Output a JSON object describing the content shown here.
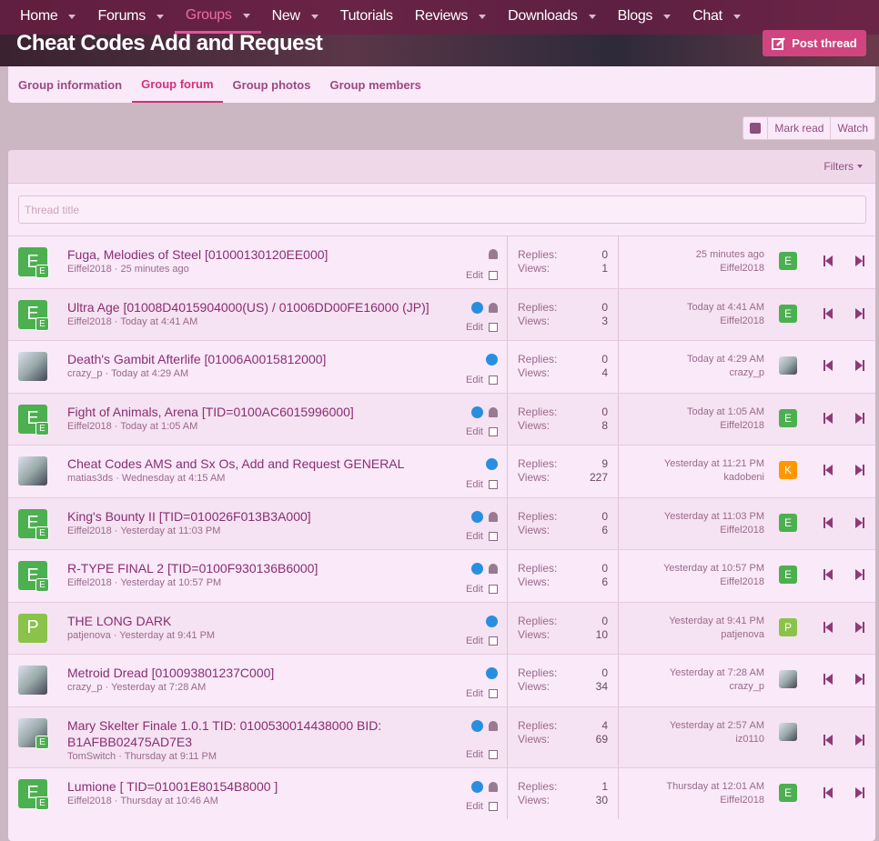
{
  "nav": [
    {
      "label": "Home",
      "menu": true
    },
    {
      "label": "Forums",
      "menu": true
    },
    {
      "label": "Groups",
      "menu": true,
      "active": true
    },
    {
      "label": "New",
      "menu": true
    },
    {
      "label": "Tutorials",
      "menu": false
    },
    {
      "label": "Reviews",
      "menu": true
    },
    {
      "label": "Downloads",
      "menu": true
    },
    {
      "label": "Blogs",
      "menu": true
    },
    {
      "label": "Chat",
      "menu": true
    }
  ],
  "header": {
    "title": "Cheat Codes Add and Request",
    "post_button": "Post thread"
  },
  "tabs": [
    {
      "label": "Group information"
    },
    {
      "label": "Group forum",
      "active": true
    },
    {
      "label": "Group photos"
    },
    {
      "label": "Group members"
    }
  ],
  "actions": {
    "mark_read": "Mark read",
    "watch": "Watch"
  },
  "filters": "Filters",
  "search_placeholder": "Thread title",
  "labels": {
    "replies": "Replies:",
    "views": "Views:",
    "edit": "Edit"
  },
  "threads": [
    {
      "title": "Fuga, Melodies of Steel [01000130120EE000]",
      "author": "Eiffel2018",
      "date": "25 minutes ago",
      "replies": 0,
      "views": 1,
      "last_date": "25 minutes ago",
      "last_user": "Eiffel2018",
      "avatar": "E",
      "badge": "E",
      "last_avatar": "E",
      "liked": false,
      "bell": true
    },
    {
      "title": "Ultra Age [01008D4015904000(US) / 01006DD00FE16000 (JP)]",
      "author": "Eiffel2018",
      "date": "Today at 4:41 AM",
      "replies": 0,
      "views": 3,
      "last_date": "Today at 4:41 AM",
      "last_user": "Eiffel2018",
      "avatar": "E",
      "badge": "E",
      "last_avatar": "E",
      "liked": true,
      "bell": true
    },
    {
      "title": "Death's Gambit Afterlife [01006A0015812000]",
      "author": "crazy_p",
      "date": "Today at 4:29 AM",
      "replies": 0,
      "views": 4,
      "last_date": "Today at 4:29 AM",
      "last_user": "crazy_p",
      "liked": true,
      "bell": false
    },
    {
      "title": "Fight of Animals, Arena [TID=0100AC6015996000]",
      "author": "Eiffel2018",
      "date": "Today at 1:05 AM",
      "replies": 0,
      "views": 8,
      "last_date": "Today at 1:05 AM",
      "last_user": "Eiffel2018",
      "avatar": "E",
      "badge": "E",
      "last_avatar": "E",
      "liked": true,
      "bell": true
    },
    {
      "title": "Cheat Codes AMS and Sx Os, Add and Request GENERAL",
      "author": "matias3ds",
      "date": "Wednesday at 4:15 AM",
      "replies": 9,
      "views": 227,
      "last_date": "Yesterday at 11:21 PM",
      "last_user": "kadobeni",
      "last_avatar": "K",
      "liked": true,
      "bell": false
    },
    {
      "title": "King's Bounty II [TID=010026F013B3A000]",
      "author": "Eiffel2018",
      "date": "Yesterday at 11:03 PM",
      "replies": 0,
      "views": 6,
      "last_date": "Yesterday at 11:03 PM",
      "last_user": "Eiffel2018",
      "avatar": "E",
      "badge": "E",
      "last_avatar": "E",
      "liked": true,
      "bell": true
    },
    {
      "title": "R-TYPE FINAL 2 [TID=0100F930136B6000]",
      "author": "Eiffel2018",
      "date": "Yesterday at 10:57 PM",
      "replies": 0,
      "views": 6,
      "last_date": "Yesterday at 10:57 PM",
      "last_user": "Eiffel2018",
      "avatar": "E",
      "badge": "E",
      "last_avatar": "E",
      "liked": true,
      "bell": true
    },
    {
      "title": "THE LONG DARK",
      "author": "patjenova",
      "date": "Yesterday at 9:41 PM",
      "replies": 0,
      "views": 10,
      "last_date": "Yesterday at 9:41 PM",
      "last_user": "patjenova",
      "avatar": "P",
      "last_avatar": "P",
      "liked": true,
      "bell": false
    },
    {
      "title": "Metroid Dread [010093801237C000]",
      "author": "crazy_p",
      "date": "Yesterday at 7:28 AM",
      "replies": 0,
      "views": 34,
      "last_date": "Yesterday at 7:28 AM",
      "last_user": "crazy_p",
      "liked": true,
      "bell": false
    },
    {
      "title": "Mary Skelter Finale 1.0.1 TID: 0100530014438000 BID: B1AFBB02475AD7E3",
      "author": "TomSwitch",
      "date": "Thursday at 9:11 PM",
      "replies": 4,
      "views": 69,
      "last_date": "Yesterday at 2:57 AM",
      "last_user": "iz0110",
      "badge": "E",
      "liked": true,
      "bell": true
    },
    {
      "title": "Lumione [ TID=01001E80154B8000 ]",
      "author": "Eiffel2018",
      "date": "Thursday at 10:46 AM",
      "replies": 1,
      "views": 30,
      "last_date": "Thursday at 12:01 AM",
      "last_user": "Eiffel2018",
      "avatar": "E",
      "badge": "E",
      "last_avatar": "E",
      "liked": true,
      "bell": true
    }
  ]
}
